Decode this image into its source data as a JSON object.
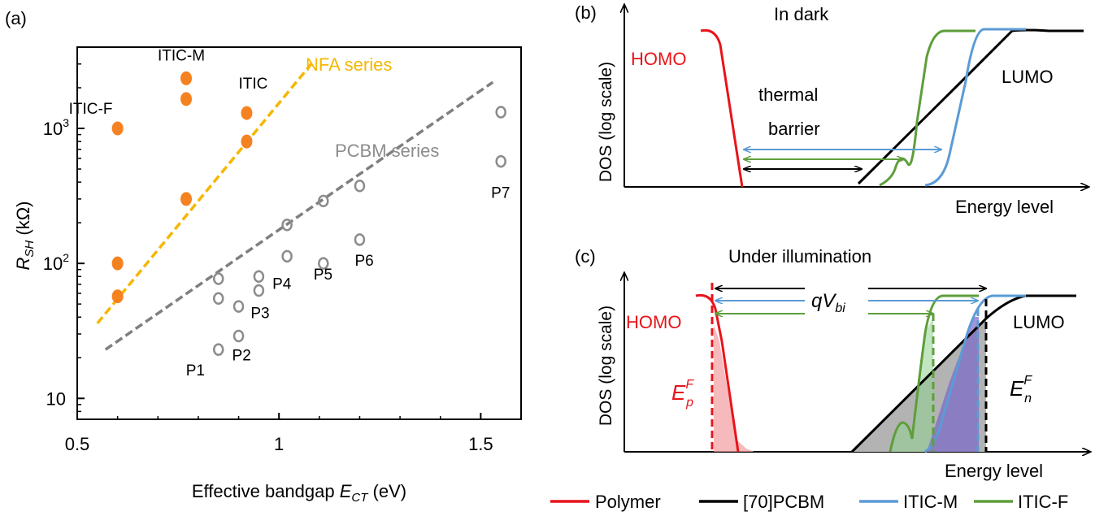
{
  "chart_data": [
    {
      "panel": "(a)",
      "type": "scatter",
      "xlabel": "Effective bandgap",
      "xlabel_symbol": "E",
      "xlabel_sub": "CT",
      "xlabel_unit": "(eV)",
      "ylabel_symbol": "R",
      "ylabel_sub": "SH",
      "ylabel_unit": "(kΩ)",
      "xlim": [
        0.5,
        1.6
      ],
      "ylim": [
        7,
        4000
      ],
      "y_scale": "log",
      "x_ticks": [
        {
          "value": 0.5,
          "label": "0.5"
        },
        {
          "value": 1.0,
          "label": "1"
        },
        {
          "value": 1.5,
          "label": "1.5"
        }
      ],
      "y_ticks": [
        {
          "value": 10,
          "base": "10",
          "exp": ""
        },
        {
          "value": 100,
          "base": "10",
          "exp": "2"
        },
        {
          "value": 1000,
          "base": "10",
          "exp": "3"
        }
      ],
      "grid": false,
      "series": [
        {
          "name": "NFA series",
          "color": "#F58220",
          "marker": "filled-circle",
          "fit_color": "#F5B700",
          "fit": [
            [
              0.55,
              36
            ],
            [
              1.08,
              3000
            ]
          ],
          "points": [
            {
              "x": 0.6,
              "y": 1000,
              "label": "ITIC-F"
            },
            {
              "x": 0.6,
              "y": 100,
              "label": ""
            },
            {
              "x": 0.6,
              "y": 57,
              "label": ""
            },
            {
              "x": 0.77,
              "y": 2350,
              "label": "ITIC-M"
            },
            {
              "x": 0.77,
              "y": 1650,
              "label": ""
            },
            {
              "x": 0.77,
              "y": 300,
              "label": ""
            },
            {
              "x": 0.92,
              "y": 1300,
              "label": "ITIC"
            },
            {
              "x": 0.92,
              "y": 800,
              "label": ""
            }
          ]
        },
        {
          "name": "PCBM series",
          "color": "#8C8C8C",
          "marker": "open-circle",
          "fit_color": "#7F7F7F",
          "fit": [
            [
              0.57,
              23
            ],
            [
              1.53,
              2200
            ]
          ],
          "points": [
            {
              "x": 0.85,
              "y": 23,
              "label": "P1"
            },
            {
              "x": 0.85,
              "y": 55,
              "label": ""
            },
            {
              "x": 0.85,
              "y": 77,
              "label": ""
            },
            {
              "x": 0.9,
              "y": 29,
              "label": "P2"
            },
            {
              "x": 0.9,
              "y": 48,
              "label": ""
            },
            {
              "x": 0.95,
              "y": 63,
              "label": "P3"
            },
            {
              "x": 0.95,
              "y": 80,
              "label": ""
            },
            {
              "x": 1.02,
              "y": 113,
              "label": "P4"
            },
            {
              "x": 1.02,
              "y": 193,
              "label": ""
            },
            {
              "x": 1.11,
              "y": 100,
              "label": "P5"
            },
            {
              "x": 1.11,
              "y": 290,
              "label": ""
            },
            {
              "x": 1.2,
              "y": 150,
              "label": "P6"
            },
            {
              "x": 1.2,
              "y": 375,
              "label": ""
            },
            {
              "x": 1.55,
              "y": 570,
              "label": "P7"
            },
            {
              "x": 1.55,
              "y": 1320,
              "label": ""
            }
          ]
        }
      ]
    },
    {
      "panel": "(b)",
      "type": "line",
      "title": "In dark",
      "ylabel": "DOS (log scale)",
      "xlabel": "Energy level",
      "labels": {
        "homo": "HOMO",
        "lumo": "LUMO",
        "barrier_1": "thermal",
        "barrier_2": "barrier"
      }
    },
    {
      "panel": "(c)",
      "type": "area",
      "title": "Under illumination",
      "ylabel": "DOS (log scale)",
      "xlabel": "Energy level",
      "labels": {
        "homo": "HOMO",
        "lumo": "LUMO",
        "vbi": "qV",
        "vbi_sub": "bi",
        "efp": "E",
        "efp_sub": "p",
        "efp_sup": "F",
        "efn": "E",
        "efn_sub": "n",
        "efn_sup": "F"
      }
    }
  ],
  "legend": [
    {
      "label": "Polymer",
      "color": "#E8141A"
    },
    {
      "label": "[70]PCBM",
      "color": "#000000"
    },
    {
      "label": "ITIC-M",
      "color": "#5B9BD5"
    },
    {
      "label": "ITIC-F",
      "color": "#5E9E3A"
    }
  ]
}
